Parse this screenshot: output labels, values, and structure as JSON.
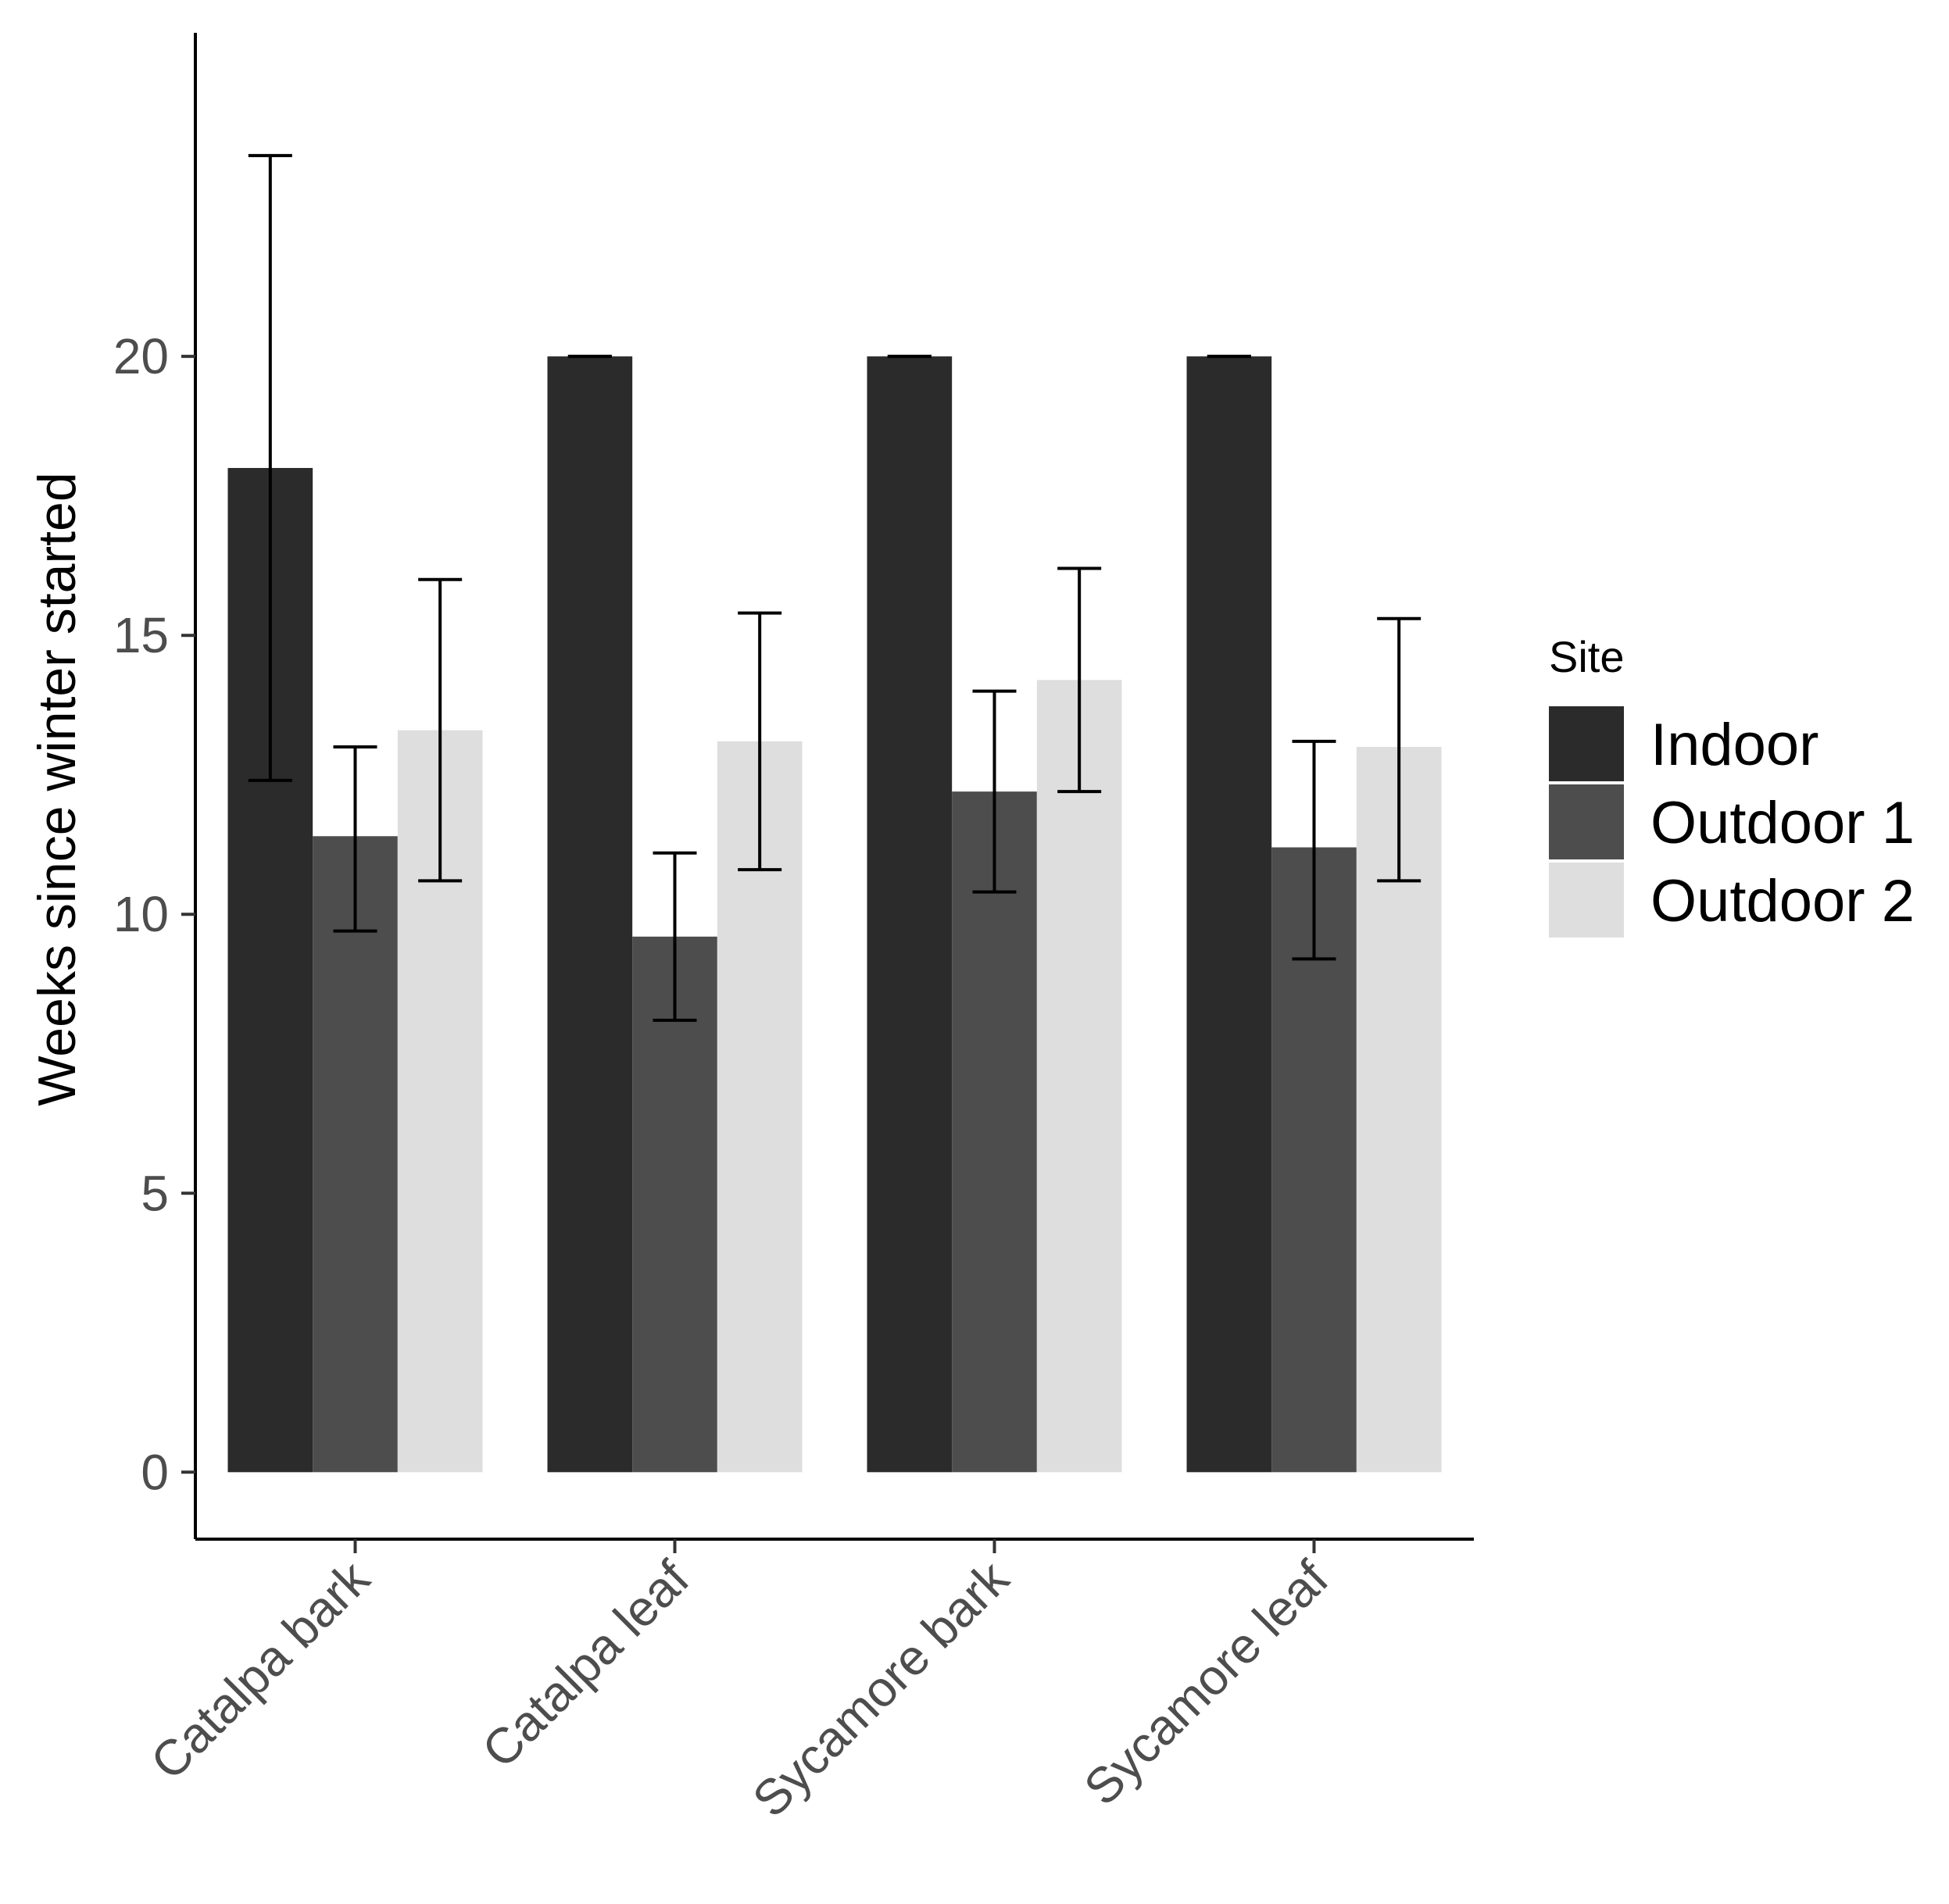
{
  "chart_data": {
    "type": "bar",
    "title": "",
    "xlabel": "",
    "ylabel": "Weeks since winter started",
    "ylim": [
      -1.2,
      25.8
    ],
    "yticks": [
      0,
      5,
      10,
      15,
      20
    ],
    "categories": [
      "Catalpa bark",
      "Catalpa leaf",
      "Sycamore bark",
      "Sycamore leaf"
    ],
    "legend": {
      "title": "Site",
      "position": "right"
    },
    "series": [
      {
        "name": "Indoor",
        "color": "#2b2b2b",
        "values": [
          18.0,
          20.0,
          20.0,
          20.0
        ],
        "error_low": [
          12.4,
          20.0,
          20.0,
          20.0
        ],
        "error_high": [
          23.6,
          20.0,
          20.0,
          20.0
        ]
      },
      {
        "name": "Outdoor 1",
        "color": "#4d4d4d",
        "values": [
          11.4,
          9.6,
          12.2,
          11.2
        ],
        "error_low": [
          9.7,
          8.1,
          10.4,
          9.2
        ],
        "error_high": [
          13.0,
          11.1,
          14.0,
          13.1
        ]
      },
      {
        "name": "Outdoor 2",
        "color": "#dedede",
        "values": [
          13.3,
          13.1,
          14.2,
          13.0
        ],
        "error_low": [
          10.6,
          10.8,
          12.2,
          10.6
        ],
        "error_high": [
          16.0,
          15.4,
          16.2,
          15.3
        ]
      }
    ]
  }
}
